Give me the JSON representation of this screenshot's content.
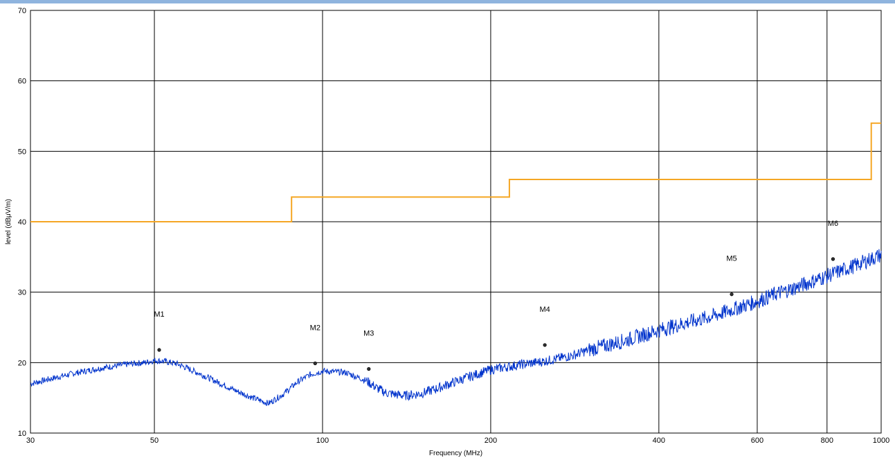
{
  "colors": {
    "window_bar": "#8fb4de",
    "trace": "#0033cc",
    "limit": "#f5a623",
    "grid": "#000000"
  },
  "chart_data": {
    "type": "line",
    "title": "",
    "xlabel": "Frequency (MHz)",
    "ylabel": "level (dBμV/m)",
    "x_scale": "log",
    "xlim": [
      30,
      1000
    ],
    "ylim": [
      10,
      70
    ],
    "x_ticks": [
      30,
      50,
      100,
      200,
      400,
      600,
      800,
      1000
    ],
    "x_tick_labels": [
      "30",
      "50",
      "100",
      "200",
      "400",
      "600",
      "800",
      "1000"
    ],
    "y_ticks": [
      10,
      20,
      30,
      40,
      50,
      60,
      70
    ],
    "y_tick_labels": [
      "10",
      "20",
      "30",
      "40",
      "50",
      "60",
      "70"
    ],
    "grid": true,
    "legend": "none",
    "series": [
      {
        "kind": "limit",
        "color": "#f5a623",
        "x": [
          30,
          88,
          88,
          216,
          216,
          960,
          960,
          1000
        ],
        "y": [
          40,
          40,
          43.5,
          43.5,
          46,
          46,
          54,
          54
        ]
      },
      {
        "kind": "measurement",
        "color": "#0033cc",
        "x": [
          30,
          33,
          36,
          40,
          45,
          48,
          50,
          52,
          55,
          60,
          65,
          70,
          75,
          80,
          85,
          90,
          95,
          100,
          110,
          120,
          125,
          130,
          140,
          150,
          160,
          180,
          200,
          230,
          250,
          280,
          300,
          350,
          400,
          450,
          500,
          550,
          600,
          650,
          700,
          800,
          900,
          1000
        ],
        "y": [
          17,
          17.8,
          18.5,
          19.2,
          19.8,
          20,
          20.3,
          20.2,
          19.8,
          18.5,
          17.2,
          16,
          15,
          14.2,
          15.5,
          17.2,
          18.3,
          18.8,
          18.6,
          17.4,
          16.4,
          15.7,
          15.3,
          15.6,
          16.3,
          17.8,
          19,
          19.8,
          20.2,
          21,
          21.8,
          23.2,
          24.6,
          25.7,
          26.6,
          27.7,
          28.7,
          29.8,
          30.6,
          32.3,
          33.8,
          35.3
        ]
      }
    ],
    "markers": [
      {
        "label": "M1",
        "x": 51,
        "y": 21.8
      },
      {
        "label": "M2",
        "x": 97,
        "y": 19.9
      },
      {
        "label": "M3",
        "x": 121,
        "y": 19.1
      },
      {
        "label": "M4",
        "x": 250,
        "y": 22.5
      },
      {
        "label": "M5",
        "x": 540,
        "y": 29.7
      },
      {
        "label": "M6",
        "x": 820,
        "y": 34.7
      }
    ]
  }
}
